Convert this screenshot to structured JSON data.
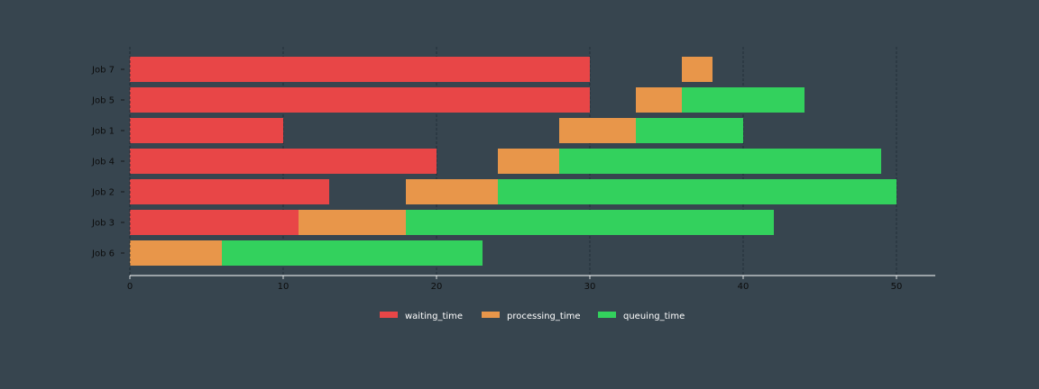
{
  "chart_data": {
    "type": "bar",
    "orientation": "horizontal",
    "stacked": false,
    "categories": [
      "Job 7",
      "Job 5",
      "Job 1",
      "Job 4",
      "Job 2",
      "Job 3",
      "Job 6"
    ],
    "series": [
      {
        "name": "waiting_time",
        "color": "#e84647",
        "segments": [
          [
            0,
            30
          ],
          [
            0,
            30
          ],
          [
            0,
            10
          ],
          [
            0,
            20
          ],
          [
            0,
            13
          ],
          [
            0,
            11
          ],
          null
        ]
      },
      {
        "name": "processing_time",
        "color": "#e8964a",
        "segments": [
          [
            36,
            38
          ],
          [
            33,
            36
          ],
          [
            28,
            33
          ],
          [
            24,
            28
          ],
          [
            18,
            24
          ],
          [
            11,
            18
          ],
          [
            0,
            6
          ]
        ]
      },
      {
        "name": "queuing_time",
        "color": "#33d15d",
        "segments": [
          null,
          [
            36,
            44
          ],
          [
            33,
            40
          ],
          [
            28,
            49
          ],
          [
            24,
            50
          ],
          [
            18,
            42
          ],
          [
            6,
            23
          ]
        ]
      }
    ],
    "x_ticks": [
      "0",
      "10",
      "20",
      "30",
      "40",
      "50"
    ],
    "xlim": [
      0,
      52.5
    ],
    "xlabel": "",
    "ylabel": "",
    "title": "",
    "grid": "vertical dashed",
    "legend_position": "bottom-center",
    "colors": {
      "background": "#37454f",
      "axis": "#ffffff",
      "grid": "#1e2a33",
      "tick_text": "#0c0c0c",
      "legend_text": "#ffffff"
    }
  }
}
